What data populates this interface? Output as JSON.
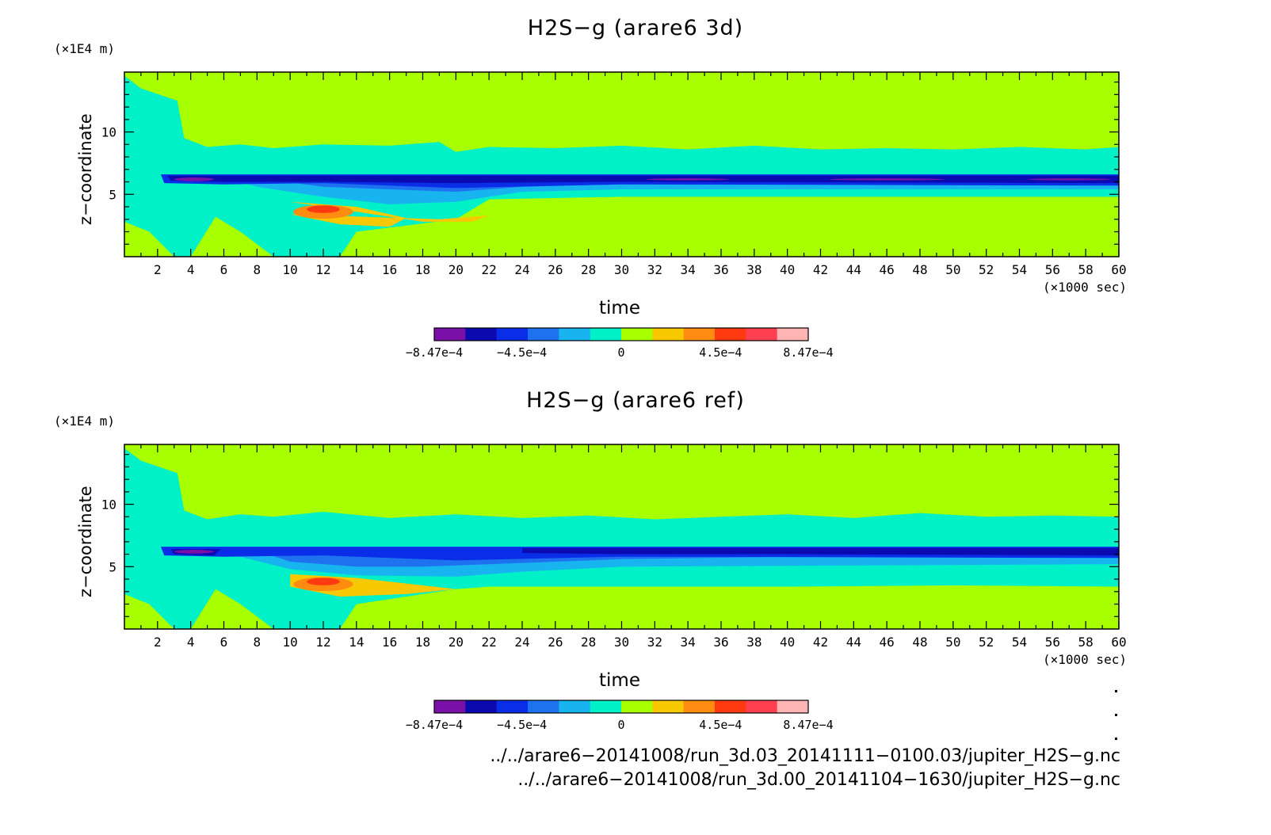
{
  "chart_data": [
    {
      "type": "heatmap",
      "title": "H2S−g (arare6 3d)",
      "xlabel": "time",
      "ylabel": "z−coordinate",
      "x_unit": "(×1000 sec)",
      "y_unit": "(×1E4 m)",
      "xlim": [
        0,
        60
      ],
      "ylim": [
        0,
        14.8
      ],
      "x_ticks": [
        2,
        4,
        6,
        8,
        10,
        12,
        14,
        16,
        18,
        20,
        22,
        24,
        26,
        28,
        30,
        32,
        34,
        36,
        38,
        40,
        42,
        44,
        46,
        48,
        50,
        52,
        54,
        56,
        58,
        60
      ],
      "y_ticks": [
        5,
        10
      ],
      "colorbar": {
        "colors": [
          "#7a10a8",
          "#0a0ab0",
          "#0a2ee8",
          "#1e72f0",
          "#18b4f0",
          "#00f0c8",
          "#a8ff00",
          "#f8c800",
          "#ff8c10",
          "#ff3a10",
          "#ff4050",
          "#ffb4b4"
        ],
        "tick_labels": [
          "−8.47e−4",
          "−4.5e−4",
          "0",
          "4.5e−4",
          "8.47e−4"
        ],
        "tick_values": [
          -0.000847,
          -0.00045,
          0,
          0.00045,
          0.000847
        ]
      }
    },
    {
      "type": "heatmap",
      "title": "H2S−g (arare6 ref)",
      "xlabel": "time",
      "ylabel": "z−coordinate",
      "x_unit": "(×1000 sec)",
      "y_unit": "(×1E4 m)",
      "xlim": [
        0,
        60
      ],
      "ylim": [
        0,
        14.8
      ],
      "x_ticks": [
        2,
        4,
        6,
        8,
        10,
        12,
        14,
        16,
        18,
        20,
        22,
        24,
        26,
        28,
        30,
        32,
        34,
        36,
        38,
        40,
        42,
        44,
        46,
        48,
        50,
        52,
        54,
        56,
        58,
        60
      ],
      "y_ticks": [
        5,
        10
      ],
      "colorbar": {
        "colors": [
          "#7a10a8",
          "#0a0ab0",
          "#0a2ee8",
          "#1e72f0",
          "#18b4f0",
          "#00f0c8",
          "#a8ff00",
          "#f8c800",
          "#ff8c10",
          "#ff3a10",
          "#ff4050",
          "#ffb4b4"
        ],
        "tick_labels": [
          "−8.47e−4",
          "−4.5e−4",
          "0",
          "4.5e−4",
          "8.47e−4"
        ],
        "tick_values": [
          -0.000847,
          -0.00045,
          0,
          0.00045,
          0.000847
        ]
      }
    }
  ],
  "footer": {
    "file1": "../../arare6−20141008/run_3d.03_20141111−0100.03/jupiter_H2S−g.nc",
    "file2": "../../arare6−20141008/run_3d.00_20141104−1630/jupiter_H2S−g.nc"
  }
}
